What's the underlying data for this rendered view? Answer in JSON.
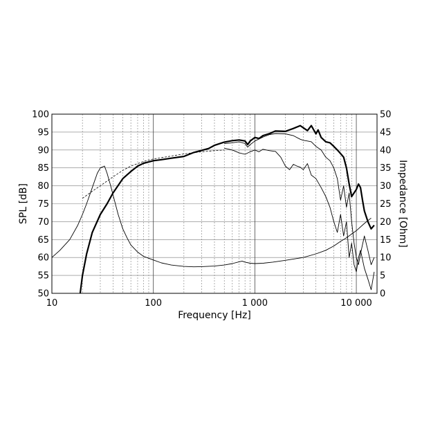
{
  "chart_data": {
    "type": "line",
    "xlabel": "Frequency [Hz]",
    "ylabel": "SPL [dB]",
    "ylabel_right": "Impedance [Ohm]",
    "x_scale": "log",
    "xlim": [
      10,
      16000
    ],
    "ylim": [
      50,
      100
    ],
    "ylim_right": [
      0,
      50
    ],
    "grid": true,
    "x_tick_labels": [
      {
        "value": 10,
        "label": "10"
      },
      {
        "value": 100,
        "label": "100"
      },
      {
        "value": 1000,
        "label": "1 000"
      },
      {
        "value": 10000,
        "label": "10 000"
      }
    ],
    "y_tick_labels": [
      "50",
      "55",
      "60",
      "65",
      "70",
      "75",
      "80",
      "85",
      "90",
      "95",
      "100"
    ],
    "y_right_tick_labels": [
      "0",
      "5",
      "10",
      "15",
      "20",
      "25",
      "30",
      "35",
      "40",
      "45",
      "50"
    ],
    "series": [
      {
        "key": "spl_on_axis",
        "axis": "left",
        "style": "thick",
        "x": [
          19,
          20,
          22,
          25,
          30,
          35,
          40,
          50,
          60,
          70,
          80,
          100,
          120,
          150,
          200,
          250,
          300,
          350,
          400,
          500,
          600,
          700,
          800,
          850,
          900,
          1000,
          1100,
          1200,
          1400,
          1600,
          2000,
          2400,
          2800,
          3000,
          3300,
          3600,
          4000,
          4200,
          4500,
          5000,
          5500,
          6000,
          6500,
          7000,
          7500,
          8000,
          8500,
          9000,
          10000,
          10500,
          11000,
          11500,
          12000,
          13000,
          14000,
          15000
        ],
        "y": [
          50,
          55,
          61,
          67,
          72,
          75,
          78,
          82,
          84,
          85.5,
          86.3,
          87,
          87.3,
          87.7,
          88.2,
          89.3,
          89.9,
          90.4,
          91.3,
          92.2,
          92.6,
          92.8,
          92.5,
          91.5,
          92.5,
          93.5,
          93.2,
          94,
          94.6,
          95.3,
          95.2,
          96,
          96.8,
          96.2,
          95.4,
          96.8,
          94.5,
          95.6,
          93.5,
          92.3,
          92,
          91,
          90,
          89,
          88,
          85,
          80.5,
          77,
          79,
          80.5,
          79.5,
          76,
          73,
          70,
          68,
          69
        ]
      },
      {
        "key": "spl_off_axis_1",
        "axis": "left",
        "style": "thin",
        "x": [
          500,
          600,
          700,
          800,
          850,
          900,
          1000,
          1200,
          1400,
          1600,
          2000,
          2400,
          2800,
          3000,
          3300,
          3600,
          4000,
          4500,
          5000,
          5500,
          6000,
          6500,
          7000,
          7500,
          8000,
          8500,
          9000,
          9500,
          10000,
          10500,
          11000,
          12000,
          13000,
          14000,
          15000
        ],
        "y": [
          91.8,
          92,
          92.3,
          91.8,
          90.8,
          91.5,
          92.5,
          93.6,
          94.3,
          94.6,
          94.5,
          94,
          93,
          92.7,
          92.5,
          92.3,
          91,
          90,
          88,
          87,
          85,
          82,
          76,
          80,
          74,
          78,
          70,
          64,
          60,
          58,
          61,
          66,
          62,
          58,
          60
        ]
      },
      {
        "key": "spl_off_axis_2",
        "axis": "left",
        "style": "thin",
        "x": [
          500,
          600,
          700,
          800,
          900,
          1000,
          1100,
          1200,
          1400,
          1600,
          1800,
          2000,
          2200,
          2400,
          2600,
          2800,
          3000,
          3300,
          3600,
          4000,
          4500,
          5000,
          5500,
          6000,
          6500,
          7000,
          7500,
          8000,
          8500,
          9000,
          9500,
          10000,
          10500,
          11000,
          12000,
          13000,
          14000,
          15000
        ],
        "y": [
          90.5,
          90,
          89.2,
          88.8,
          89.5,
          90,
          89.5,
          90.2,
          89.8,
          89.6,
          88,
          85.5,
          84.5,
          86,
          85.5,
          85.2,
          84.5,
          86.2,
          83,
          82,
          79.5,
          77,
          74,
          70,
          67,
          72,
          66,
          70,
          60,
          64,
          58,
          56,
          60,
          62,
          57,
          54,
          51,
          56
        ]
      },
      {
        "key": "spl_dashed",
        "axis": "left",
        "style": "dashed",
        "x": [
          20,
          25,
          30,
          40,
          50,
          60,
          80,
          100,
          150,
          200,
          300,
          400,
          500
        ],
        "y": [
          76.5,
          78.5,
          80,
          82.5,
          84.3,
          85.5,
          86.8,
          87.5,
          88.3,
          88.9,
          89.5,
          89.8,
          90
        ]
      },
      {
        "key": "impedance",
        "axis": "right",
        "style": "thin",
        "x": [
          10,
          12,
          15,
          18,
          20,
          22,
          25,
          28,
          30,
          33,
          35,
          38,
          40,
          45,
          50,
          55,
          60,
          70,
          80,
          100,
          120,
          150,
          200,
          250,
          300,
          400,
          500,
          600,
          700,
          750,
          800,
          900,
          1000,
          1200,
          1500,
          2000,
          3000,
          4000,
          5000,
          6000,
          7000,
          8000,
          10000,
          12000,
          14000
        ],
        "y": [
          10,
          12,
          15,
          19,
          22,
          25,
          29.5,
          33.5,
          35,
          35.5,
          33.5,
          30,
          27.5,
          22,
          18,
          15.5,
          13.5,
          11.5,
          10.3,
          9.3,
          8.5,
          7.9,
          7.5,
          7.4,
          7.45,
          7.6,
          7.9,
          8.3,
          8.8,
          9,
          8.7,
          8.4,
          8.3,
          8.4,
          8.7,
          9.2,
          10,
          11,
          12,
          13.2,
          14.5,
          15.5,
          17.5,
          19.5,
          21
        ]
      }
    ]
  }
}
